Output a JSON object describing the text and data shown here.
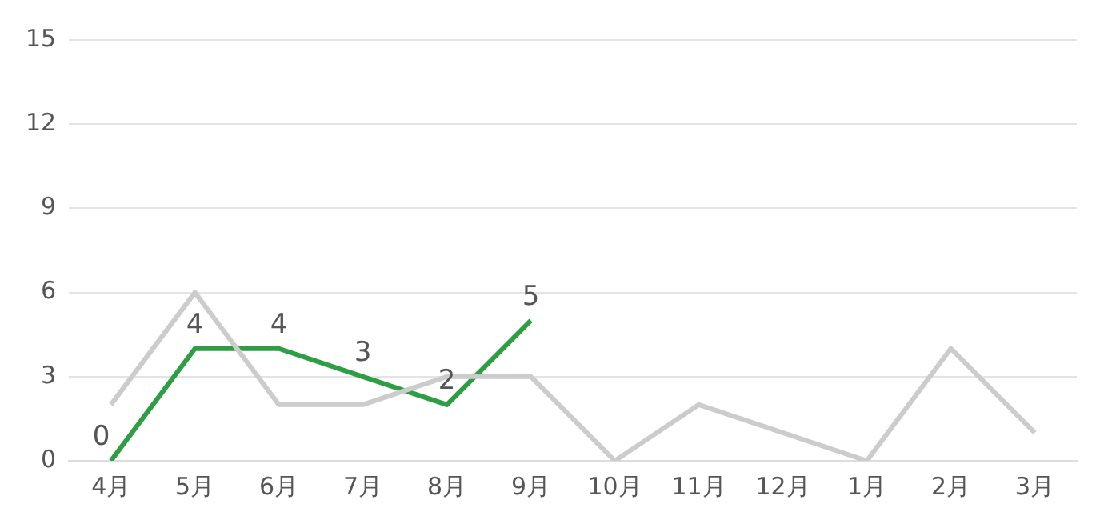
{
  "chart_data": {
    "type": "line",
    "categories": [
      "4月",
      "5月",
      "6月",
      "7月",
      "8月",
      "9月",
      "10月",
      "11月",
      "12月",
      "1月",
      "2月",
      "3月"
    ],
    "series": [
      {
        "color": "#cccccc",
        "values": [
          2,
          6,
          2,
          2,
          3,
          3,
          0,
          2,
          1,
          0,
          4,
          1
        ]
      },
      {
        "color": "#2e9e44",
        "values": [
          0,
          4,
          4,
          3,
          2,
          5,
          null,
          null,
          null,
          null,
          null,
          null
        ],
        "value_labels": [
          "0",
          "4",
          "4",
          "3",
          "2",
          "5",
          null,
          null,
          null,
          null,
          null,
          null
        ]
      }
    ],
    "ylim": [
      0,
      15
    ],
    "yticks": [
      0,
      3,
      6,
      9,
      12,
      15
    ],
    "grid": "y",
    "legend": false,
    "marker": "none",
    "line_style": "solid"
  }
}
